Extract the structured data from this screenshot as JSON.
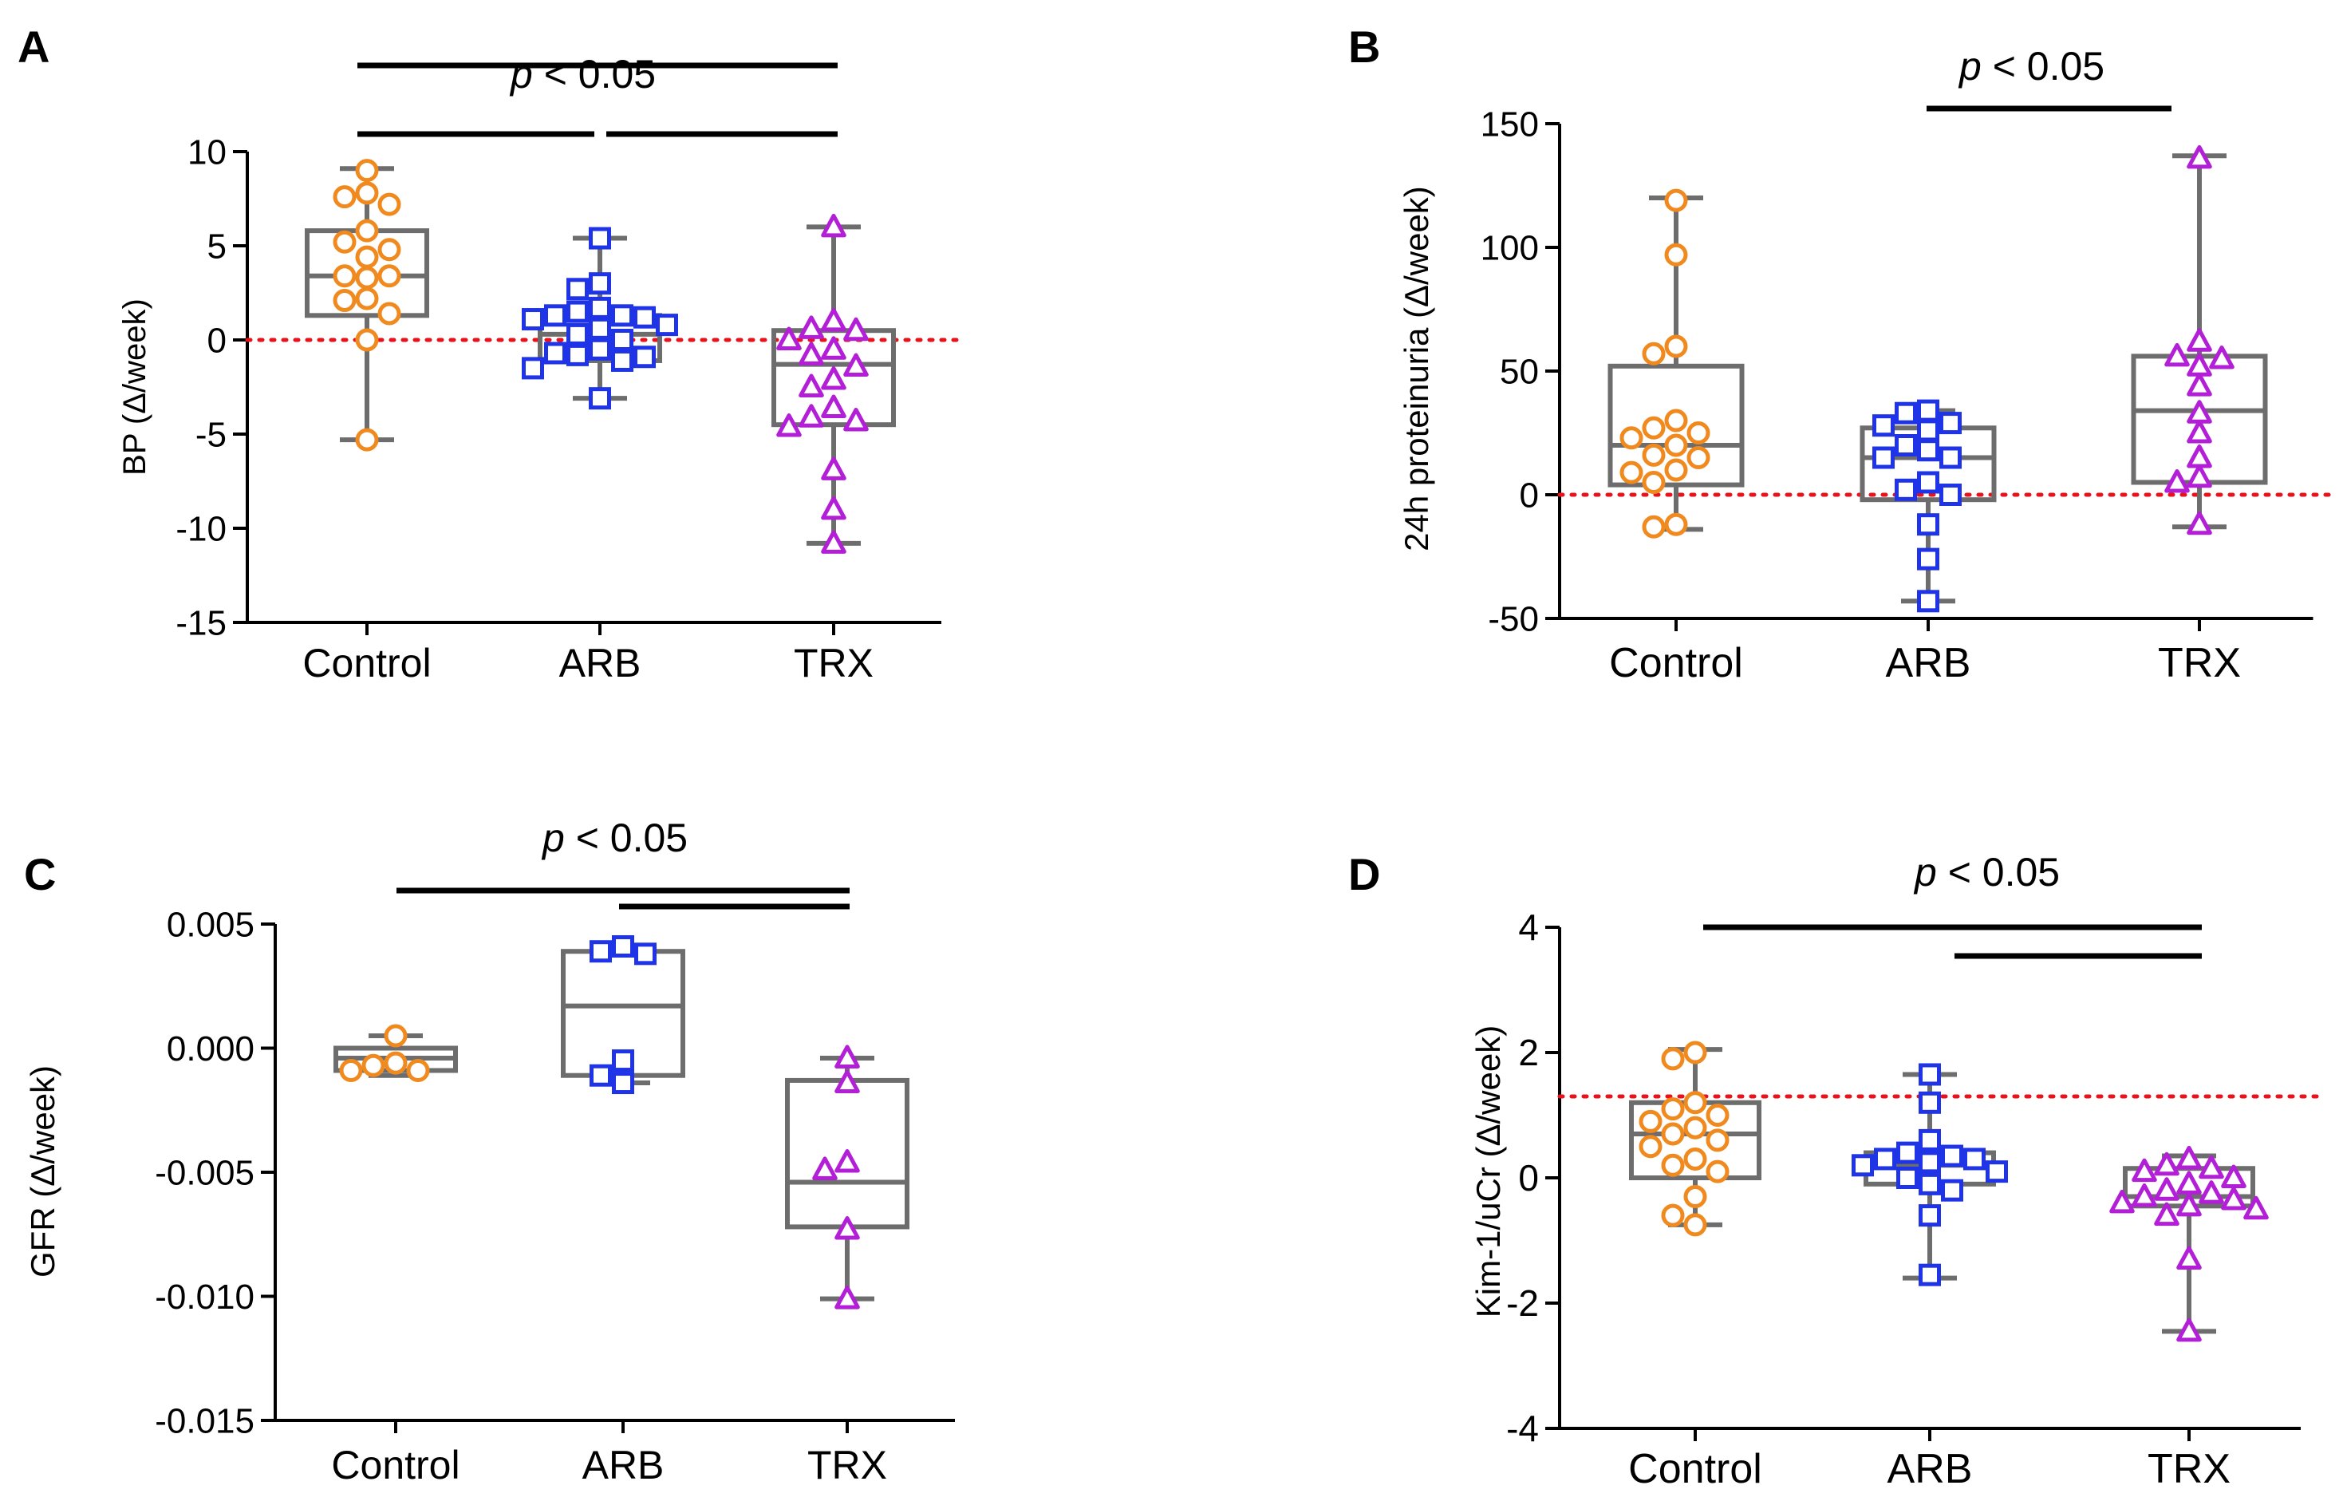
{
  "figure": {
    "style": {
      "box_color": "#6d6d6d",
      "ref_line_color": "#e8121c",
      "sig_bar_color": "#000000",
      "group_colors": [
        "#f08a1e",
        "#1f34e6",
        "#b21fd6"
      ],
      "group_markers": [
        "circle",
        "square",
        "triangle"
      ]
    }
  },
  "chart_data": [
    {
      "panel": "A",
      "type": "box",
      "ylabel": "BP (Δ/week)",
      "categories": [
        "Control",
        "ARB",
        "TRX"
      ],
      "ylim": [
        -15,
        10
      ],
      "yticks": [
        10,
        5,
        0,
        -5,
        -10,
        -15
      ],
      "yticklabels": [
        "10",
        "5",
        "0",
        "-5",
        "-10",
        "-15"
      ],
      "reference_line": 0,
      "boxes": [
        {
          "min": -5.3,
          "q1": 1.3,
          "median": 3.4,
          "q3": 5.8,
          "max": 9.1
        },
        {
          "min": -3.1,
          "q1": -1.1,
          "median": 0.3,
          "q3": 1.3,
          "max": 5.4
        },
        {
          "min": -10.8,
          "q1": -4.5,
          "median": -1.3,
          "q3": 0.5,
          "max": 6.0
        }
      ],
      "points": [
        [
          9.0,
          7.8,
          7.6,
          7.2,
          5.8,
          5.2,
          4.8,
          4.4,
          3.4,
          3.4,
          3.3,
          2.2,
          2.1,
          1.4,
          0.0,
          -5.3
        ],
        [
          5.4,
          3.0,
          2.7,
          1.7,
          1.5,
          1.3,
          1.3,
          1.2,
          1.1,
          0.8,
          0.6,
          0.3,
          0.0,
          -0.5,
          -0.7,
          -0.8,
          -0.9,
          -1.1,
          -1.5,
          -3.1
        ],
        [
          6.0,
          1.0,
          0.6,
          0.5,
          0.0,
          -0.5,
          -0.8,
          -1.4,
          -2.1,
          -2.5,
          -3.6,
          -4.1,
          -4.3,
          -4.6,
          -6.9,
          -9.0,
          -10.8
        ]
      ],
      "significance": {
        "label": "< 0.05",
        "p": "p",
        "pairs": [
          [
            0,
            2
          ],
          [
            0,
            1
          ],
          [
            1,
            2
          ]
        ]
      }
    },
    {
      "panel": "B",
      "type": "box",
      "ylabel": "24h proteinuria (Δ/week)",
      "categories": [
        "Control",
        "ARB",
        "TRX"
      ],
      "ylim": [
        -50,
        150
      ],
      "yticks": [
        150,
        100,
        50,
        0,
        -50
      ],
      "yticklabels": [
        "150",
        "100",
        "50",
        "0",
        "-50"
      ],
      "reference_line": 0,
      "boxes": [
        {
          "min": -14,
          "q1": 4,
          "median": 20,
          "q3": 52,
          "max": 120
        },
        {
          "min": -43,
          "q1": -2,
          "median": 15,
          "q3": 27,
          "max": 34
        },
        {
          "min": -13,
          "q1": 5,
          "median": 34,
          "q3": 56,
          "max": 137
        }
      ],
      "points": [
        [
          119,
          97,
          60,
          57,
          30,
          27,
          25,
          23,
          20,
          16,
          15,
          10,
          9,
          5,
          -12,
          -13
        ],
        [
          34,
          33,
          29,
          28,
          26,
          20,
          18,
          15,
          15,
          5,
          2,
          0,
          -12,
          -26,
          -43
        ],
        [
          136,
          62,
          56,
          55,
          52,
          44,
          33,
          25,
          15,
          7,
          5,
          -12
        ]
      ],
      "significance": {
        "label": "< 0.05",
        "p": "p",
        "pairs": [
          [
            1,
            2
          ]
        ]
      }
    },
    {
      "panel": "C",
      "type": "box",
      "ylabel": "GFR (Δ/week)",
      "categories": [
        "Control",
        "ARB",
        "TRX"
      ],
      "ylim": [
        -0.015,
        0.005
      ],
      "yticks": [
        0.005,
        0.0,
        -0.005,
        -0.01,
        -0.015
      ],
      "yticklabels": [
        "0.005",
        "0.000",
        "-0.005",
        "-0.010",
        "-0.015"
      ],
      "reference_line": null,
      "boxes": [
        {
          "min": -0.0011,
          "q1": -0.0009,
          "median": -0.0004,
          "q3": 0.0,
          "max": 0.0005
        },
        {
          "min": -0.0014,
          "q1": -0.0011,
          "median": 0.0017,
          "q3": 0.0039,
          "max": 0.0041
        },
        {
          "min": -0.0101,
          "q1": -0.0072,
          "median": -0.0054,
          "q3": -0.0013,
          "max": -0.0004
        }
      ],
      "points": [
        [
          0.0005,
          -0.0006,
          -0.0007,
          -0.0009,
          -0.0009
        ],
        [
          0.0041,
          0.0039,
          0.0038,
          -0.0005,
          -0.0011,
          -0.0014
        ],
        [
          -0.0004,
          -0.0014,
          -0.0046,
          -0.0049,
          -0.0073,
          -0.0101
        ]
      ],
      "significance": {
        "label": "< 0.05",
        "p": "p",
        "pairs": [
          [
            0,
            2
          ],
          [
            1,
            2
          ]
        ]
      }
    },
    {
      "panel": "D",
      "type": "box",
      "ylabel": "Kim-1/uCr (Δ/week)",
      "categories": [
        "Control",
        "ARB",
        "TRX"
      ],
      "ylim": [
        -4,
        4
      ],
      "yticks": [
        4,
        2,
        0,
        -2,
        -4
      ],
      "yticklabels": [
        "4",
        "2",
        "0",
        "-2",
        "-4"
      ],
      "reference_line": 1.3,
      "boxes": [
        {
          "min": -0.75,
          "q1": 0.0,
          "median": 0.7,
          "q3": 1.2,
          "max": 2.05
        },
        {
          "min": -1.6,
          "q1": -0.1,
          "median": 0.2,
          "q3": 0.4,
          "max": 1.65
        },
        {
          "min": -2.45,
          "q1": -0.45,
          "median": -0.3,
          "q3": 0.15,
          "max": 0.35
        }
      ],
      "points": [
        [
          2.0,
          1.9,
          1.2,
          1.1,
          1.0,
          0.9,
          0.8,
          0.7,
          0.6,
          0.5,
          0.3,
          0.2,
          0.1,
          -0.3,
          -0.6,
          -0.75
        ],
        [
          1.65,
          1.2,
          0.6,
          0.4,
          0.35,
          0.3,
          0.3,
          0.25,
          0.2,
          0.1,
          0.0,
          -0.1,
          -0.2,
          -0.6,
          -1.55
        ],
        [
          0.3,
          0.2,
          0.15,
          0.1,
          0.0,
          -0.1,
          -0.2,
          -0.25,
          -0.3,
          -0.35,
          -0.4,
          -0.45,
          -0.5,
          -0.6,
          -1.3,
          -2.45
        ]
      ],
      "significance": {
        "label": "< 0.05",
        "p": "p",
        "pairs": [
          [
            0,
            2
          ],
          [
            1,
            2
          ]
        ]
      }
    }
  ]
}
